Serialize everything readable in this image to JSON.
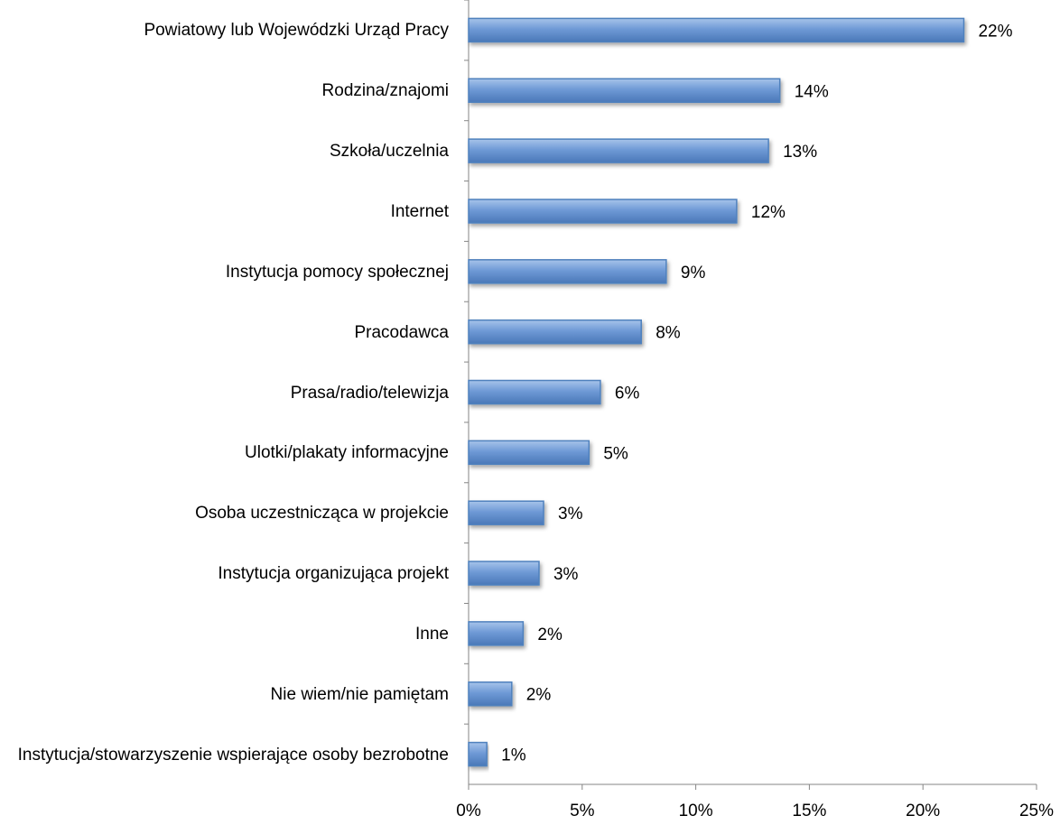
{
  "chart_data": {
    "type": "bar",
    "orientation": "horizontal",
    "categories": [
      "Powiatowy lub Wojewódzki Urząd Pracy",
      "Rodzina/znajomi",
      "Szkoła/uczelnia",
      "Internet",
      "Instytucja pomocy społecznej",
      "Pracodawca",
      "Prasa/radio/telewizja",
      "Ulotki/plakaty informacyjne",
      "Osoba uczestnicząca w projekcie",
      "Instytucja organizująca projekt",
      "Inne",
      "Nie wiem/nie pamiętam",
      "Instytucja/stowarzyszenie wspierające osoby bezrobotne"
    ],
    "values": [
      21.8,
      13.7,
      13.2,
      11.8,
      8.7,
      7.6,
      5.8,
      5.3,
      3.3,
      3.1,
      2.4,
      1.9,
      0.8
    ],
    "value_labels": [
      "22%",
      "14%",
      "13%",
      "12%",
      "9%",
      "8%",
      "6%",
      "5%",
      "3%",
      "3%",
      "2%",
      "2%",
      "1%"
    ],
    "color": "#4f81bd",
    "xlim": [
      0,
      25
    ],
    "xticks": [
      {
        "value": 0,
        "label": "0%"
      },
      {
        "value": 5,
        "label": "5%"
      },
      {
        "value": 10,
        "label": "10%"
      },
      {
        "value": 15,
        "label": "15%"
      },
      {
        "value": 20,
        "label": "20%"
      },
      {
        "value": 25,
        "label": "25%"
      }
    ],
    "grid": false
  }
}
